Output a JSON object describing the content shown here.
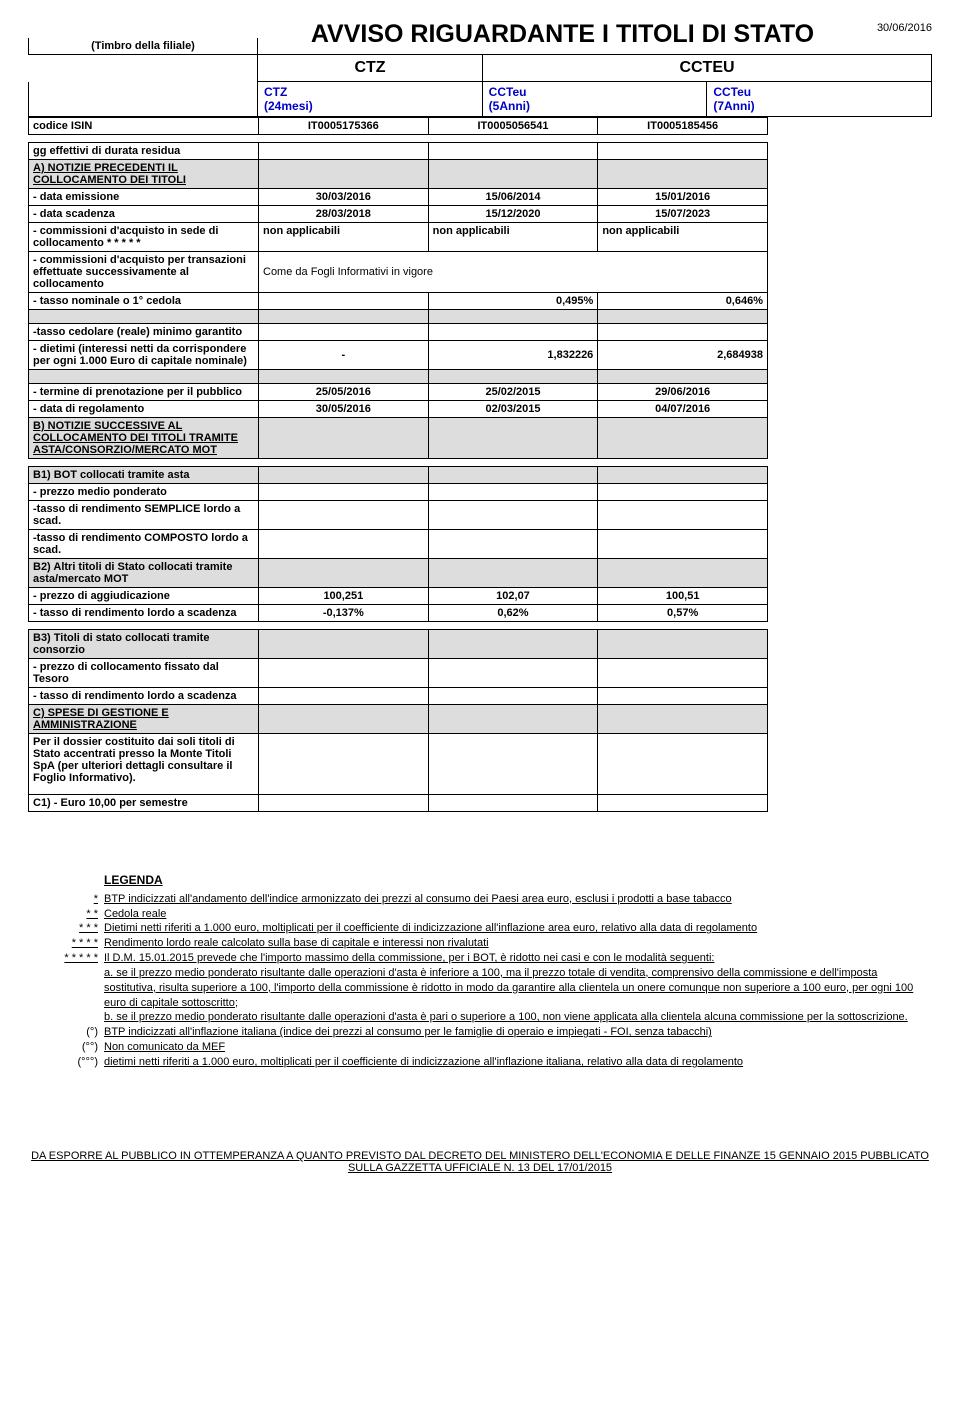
{
  "doc_date": "30/06/2016",
  "title": "AVVISO RIGUARDANTE I TITOLI DI STATO",
  "stamp_label": "(Timbro della filiale)",
  "section_heads": [
    "CTZ",
    "CCTEU"
  ],
  "subheads": [
    "CTZ\n(24mesi)",
    "CCTeu\n(5Anni)",
    "CCTeu\n(7Anni)"
  ],
  "rows": {
    "codice_isin": {
      "label": "codice ISIN",
      "vals": [
        "IT0005175366",
        "IT0005056541",
        "IT0005185456"
      ]
    },
    "gg_eff": {
      "label": "gg effettivi di durata residua",
      "vals": [
        "",
        "",
        ""
      ]
    },
    "a_notizie": {
      "label": "A) NOTIZIE PRECEDENTI IL COLLOCAMENTO DEI TITOLI"
    },
    "data_emiss": {
      "label": "- data emissione",
      "vals": [
        "30/03/2016",
        "15/06/2014",
        "15/01/2016"
      ]
    },
    "data_scad": {
      "label": "- data scadenza",
      "vals": [
        "28/03/2018",
        "15/12/2020",
        "15/07/2023"
      ]
    },
    "comm_acq": {
      "label": "- commissioni d'acquisto in sede di collocamento * * * * *",
      "vals": [
        "non applicabili",
        "non applicabili",
        "non applicabili"
      ]
    },
    "comm_trans": {
      "label": "- commissioni d'acquisto per transazioni effettuate successivamente al collocamento",
      "merged": "Come da Fogli Informativi in vigore"
    },
    "tasso_nom": {
      "label": "- tasso nominale o 1° cedola",
      "vals": [
        "",
        "0,495%",
        "0,646%"
      ]
    },
    "tasso_ced": {
      "label": "-tasso cedolare (reale) minimo garantito",
      "vals": [
        "",
        "",
        ""
      ]
    },
    "dietimi": {
      "label": "- dietimi (interessi netti da corrispondere per ogni 1.000 Euro di capitale nominale)",
      "vals": [
        "-",
        "1,832226",
        "2,684938"
      ]
    },
    "term_pren": {
      "label": "- termine di prenotazione per il pubblico",
      "vals": [
        "25/05/2016",
        "25/02/2015",
        "29/06/2016"
      ]
    },
    "data_reg": {
      "label": "- data di regolamento",
      "vals": [
        "30/05/2016",
        "02/03/2015",
        "04/07/2016"
      ]
    },
    "b_notizie": {
      "label": "B) NOTIZIE SUCCESSIVE AL COLLOCAMENTO DEI TITOLI TRAMITE ASTA/CONSORZIO/MERCATO MOT"
    },
    "b1": {
      "label": "B1) BOT collocati tramite asta"
    },
    "prezzo_med": {
      "label": "- prezzo medio ponderato",
      "vals": [
        "",
        "",
        ""
      ]
    },
    "tasso_semp": {
      "label": "-tasso di rendimento SEMPLICE lordo a scad.",
      "vals": [
        "",
        "",
        ""
      ]
    },
    "tasso_comp": {
      "label": "-tasso di rendimento COMPOSTO lordo a scad.",
      "vals": [
        "",
        "",
        ""
      ]
    },
    "b2": {
      "label": "B2) Altri titoli di Stato collocati tramite asta/mercato MOT"
    },
    "prezzo_agg": {
      "label": "- prezzo di aggiudicazione",
      "vals": [
        "100,251",
        "102,07",
        "100,51"
      ]
    },
    "tasso_rend": {
      "label": "- tasso di rendimento lordo a scadenza",
      "vals": [
        "-0,137%",
        "0,62%",
        "0,57%"
      ]
    },
    "b3": {
      "label": "B3) Titoli di stato collocati tramite consorzio"
    },
    "prezzo_coll": {
      "label": "- prezzo di collocamento fissato dal Tesoro",
      "vals": [
        "",
        "",
        ""
      ]
    },
    "tasso_rend2": {
      "label": "- tasso di rendimento lordo a scadenza",
      "vals": [
        "",
        "",
        ""
      ]
    },
    "c_spese": {
      "label": "C) SPESE DI GESTIONE E AMMINISTRAZIONE"
    },
    "dossier": {
      "label": "Per il dossier costituito dai soli titoli di Stato accentrati presso la Monte Titoli SpA (per ulteriori dettagli consultare il Foglio Informativo)."
    },
    "c1": {
      "label": "C1) - Euro 10,00 per semestre"
    }
  },
  "legend": {
    "title": "LEGENDA",
    "items": [
      {
        "mark": "*",
        "text": "BTP indicizzati all'andamento dell'indice armonizzato dei prezzi al consumo dei Paesi area euro, esclusi i prodotti a base tabacco"
      },
      {
        "mark": "* *",
        "text": "Cedola reale"
      },
      {
        "mark": "* * *",
        "text": "Dietimi netti riferiti a 1.000 euro, moltiplicati per il coefficiente di indicizzazione all'inflazione area euro, relativo alla data di regolamento"
      },
      {
        "mark": "* * * *",
        "text": "Rendimento lordo reale calcolato sulla base di capitale e interessi non rivalutati"
      },
      {
        "mark": "* * * * *",
        "text": "Il D.M. 15.01.2015 prevede che l'importo massimo della commissione, per i BOT, è ridotto nei casi e con le modalità seguenti:"
      }
    ],
    "extra": [
      "a. se il prezzo medio ponderato risultante dalle operazioni d'asta è inferiore a 100, ma il prezzo totale di vendita, comprensivo della commissione e dell'imposta sostitutiva, risulta superiore a 100, l'importo della commissione è ridotto in modo da garantire alla clientela un onere comunque non superiore a 100 euro, per ogni 100 euro di capitale sottoscritto;",
      "b. se il prezzo medio ponderato risultante dalle operazioni d'asta è pari o superiore a 100, non viene applicata alla clientela alcuna commissione per la sottoscrizione."
    ],
    "paren": [
      {
        "mark": "(°)",
        "text": "BTP indicizzati all'inflazione italiana (indice dei prezzi al consumo per le famiglie di operaio e impiegati - FOI, senza tabacchi)"
      },
      {
        "mark": "(°°)",
        "text": "Non comunicato da MEF"
      },
      {
        "mark": "(°°°)",
        "text": "dietimi netti riferiti a 1.000 euro, moltiplicati per il coefficiente di indicizzazione all'inflazione italiana, relativo alla data di regolamento"
      }
    ]
  },
  "footer": "DA ESPORRE AL PUBBLICO IN OTTEMPERANZA A QUANTO PREVISTO DAL DECRETO DEL MINISTERO DELL'ECONOMIA E DELLE FINANZE 15 GENNAIO 2015 PUBBLICATO SULLA GAZZETTA UFFICIALE N. 13 DEL 17/01/2015"
}
